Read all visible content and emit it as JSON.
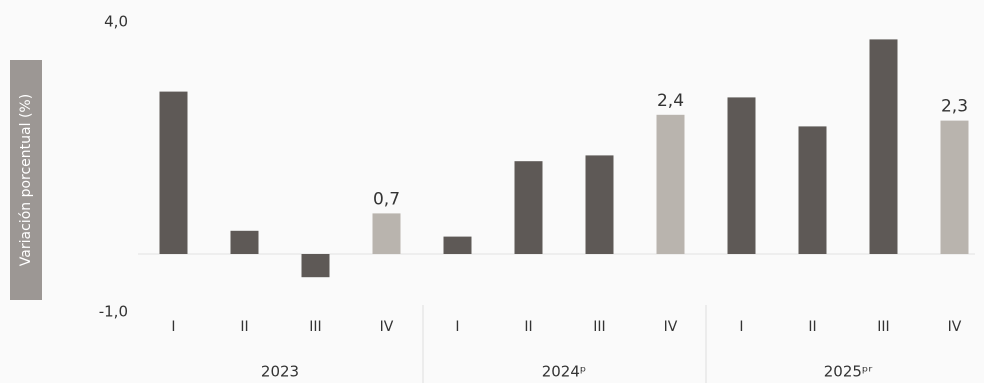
{
  "chart_data": {
    "type": "bar",
    "y_label": "Variación porcentual (%)",
    "categories": [
      "I",
      "II",
      "III",
      "IV",
      "I",
      "II",
      "III",
      "IV",
      "I",
      "II",
      "III",
      "IV"
    ],
    "groups": [
      "2023",
      "2024ᵖ",
      "2025ᵖʳ"
    ],
    "values": [
      2.8,
      0.4,
      -0.4,
      0.7,
      0.3,
      1.6,
      1.7,
      2.4,
      2.7,
      2.2,
      3.7,
      2.3
    ],
    "value_labels": [
      null,
      null,
      null,
      "0,7",
      null,
      null,
      null,
      "2,4",
      null,
      null,
      null,
      "2,3"
    ],
    "colors": [
      "#5e5956",
      "#5e5956",
      "#5e5956",
      "#b9b4ae",
      "#5e5956",
      "#5e5956",
      "#5e5956",
      "#b9b4ae",
      "#5e5956",
      "#5e5956",
      "#5e5956",
      "#b9b4ae"
    ],
    "ylim": [
      -1,
      4
    ],
    "yticks": [
      {
        "value": 4,
        "label": "4,0"
      },
      {
        "value": -1,
        "label": "-1,0"
      }
    ]
  }
}
